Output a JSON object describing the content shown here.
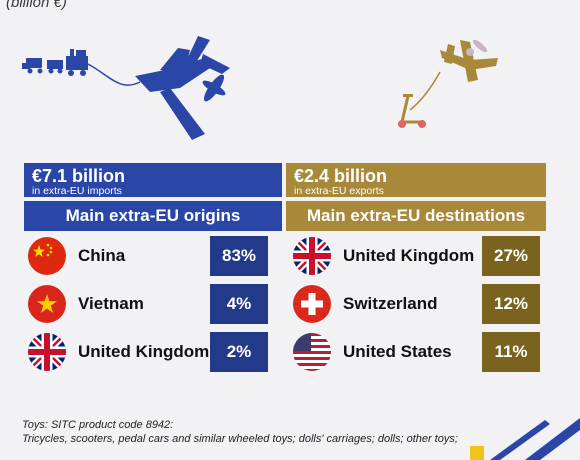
{
  "subtitle": "(billion €)",
  "imports": {
    "amount": "€7.1 billion",
    "caption": "in extra-EU imports",
    "section": "Main extra-EU origins",
    "rows": [
      {
        "country": "China",
        "share": "83%",
        "flag": "china-flag-icon"
      },
      {
        "country": "Vietnam",
        "share": "4%",
        "flag": "vietnam-flag-icon"
      },
      {
        "country": "United Kingdom",
        "share": "2%",
        "flag": "uk-flag-icon"
      }
    ]
  },
  "exports": {
    "amount": "€2.4 billion",
    "caption": "in extra-EU exports",
    "section": "Main extra-EU destinations",
    "rows": [
      {
        "country": "United Kingdom",
        "share": "27%",
        "flag": "uk-flag-icon"
      },
      {
        "country": "Switzerland",
        "share": "12%",
        "flag": "switzerland-flag-icon"
      },
      {
        "country": "United States",
        "share": "11%",
        "flag": "usa-flag-icon"
      }
    ]
  },
  "footnote": {
    "line1": "Toys: SITC product code 8942:",
    "line2": "Tricycles, scooters, pedal cars and similar wheeled toys; dolls' carriages; dolls; other toys;"
  },
  "colors": {
    "blue": "#2a47a8",
    "gold": "#a8893a",
    "dark_blue": "#233a8a",
    "dark_gold": "#7a621f"
  }
}
